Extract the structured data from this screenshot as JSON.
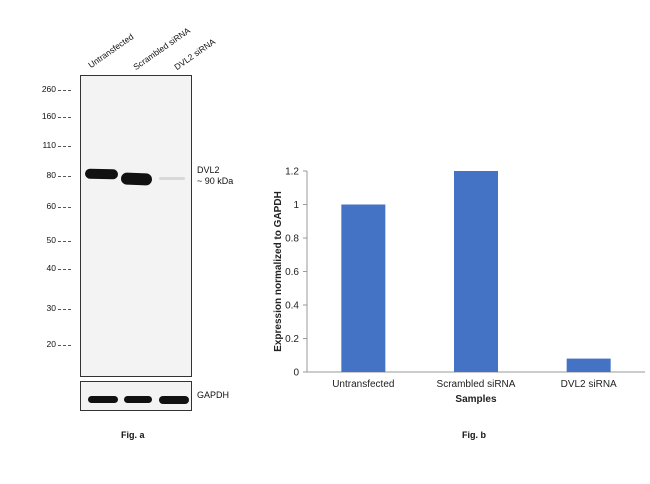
{
  "western_blot": {
    "lanes": [
      "Untransfected",
      "Scrambled siRNA",
      "DVL2 siRNA"
    ],
    "markers": [
      "260",
      "160",
      "110",
      "80",
      "60",
      "50",
      "40",
      "30",
      "20"
    ],
    "target_label": "DVL2",
    "target_size": "~ 90 kDa",
    "loading_control": "GAPDH",
    "caption": "Fig. a"
  },
  "bar_figure": {
    "caption": "Fig. b"
  },
  "chart_data": {
    "type": "bar",
    "title": "",
    "xlabel": "Samples",
    "ylabel": "Expression normalized to GAPDH",
    "categories": [
      "Untransfected",
      "Scrambled siRNA",
      "DVL2 siRNA"
    ],
    "values": [
      1.0,
      1.2,
      0.08
    ],
    "ylim": [
      0,
      1.2
    ],
    "yticks": [
      "0",
      "0.2",
      "0.4",
      "0.6",
      "0.8",
      "1",
      "1.2"
    ],
    "bar_color": "#4472C4",
    "grid": false,
    "legend": "none"
  }
}
